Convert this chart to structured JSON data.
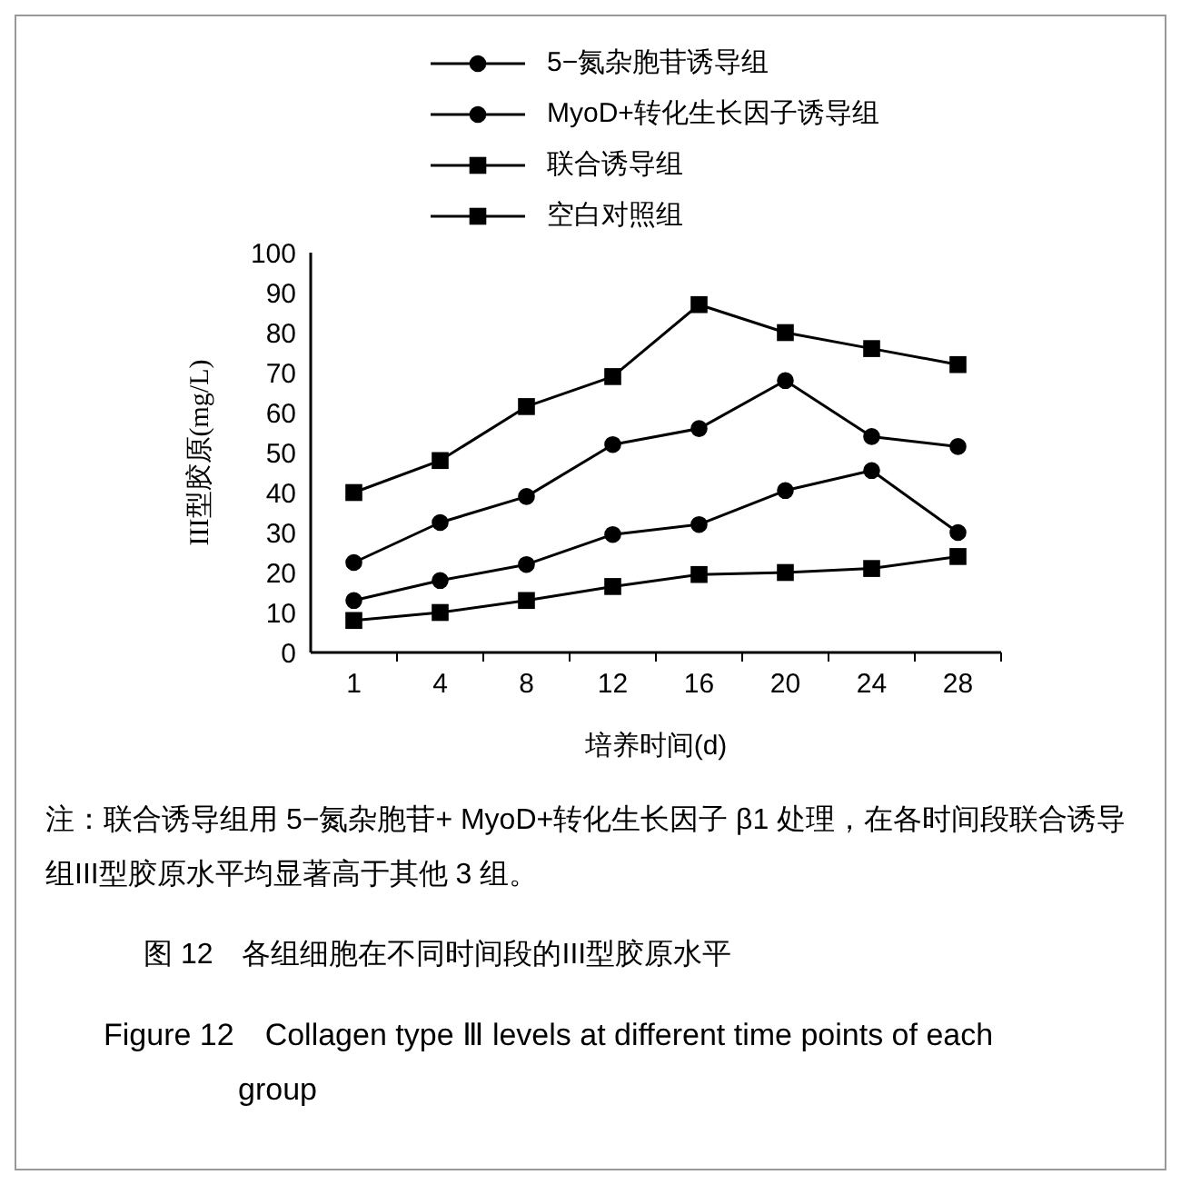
{
  "chart_data": {
    "type": "line",
    "title": "图 12　各组细胞在不同时间段的III型胶原水平",
    "subtitle": "Figure 12　Collagen type Ⅲ levels at different time points of each group",
    "xlabel": "培养时间(d)",
    "ylabel": "III型胶原(mg/L)",
    "annotations": [
      "注：联合诱导组用 5−氮杂胞苷+ MyoD+转化生长因子 β1 处理，在各时间段联合诱导组III型胶原水平均显著高于其他 3 组。"
    ],
    "categories": [
      "1",
      "4",
      "8",
      "12",
      "16",
      "20",
      "24",
      "28"
    ],
    "series": [
      {
        "name": "5−氮杂胞苷诱导组",
        "color": "#000000",
        "marker": "circle",
        "values": [
          13,
          18,
          22,
          29.5,
          32,
          40.5,
          45.5,
          30
        ]
      },
      {
        "name": "MyoD+转化生长因子诱导组",
        "color": "#000000",
        "marker": "circle",
        "values": [
          22.5,
          32.5,
          39,
          52,
          56,
          68,
          54,
          51.5
        ]
      },
      {
        "name": "联合诱导组",
        "color": "#000000",
        "marker": "square",
        "values": [
          40,
          48,
          61.5,
          69,
          87,
          80,
          76,
          72
        ]
      },
      {
        "name": "空白对照组",
        "color": "#000000",
        "marker": "square",
        "values": [
          8,
          10,
          13,
          16.5,
          19.5,
          20,
          21,
          24
        ]
      }
    ],
    "ylim": [
      0,
      100
    ],
    "yticks": [
      0,
      10,
      20,
      30,
      40,
      50,
      60,
      70,
      80,
      90,
      100
    ],
    "grid": false,
    "legend": "top",
    "line_style": "solid"
  }
}
